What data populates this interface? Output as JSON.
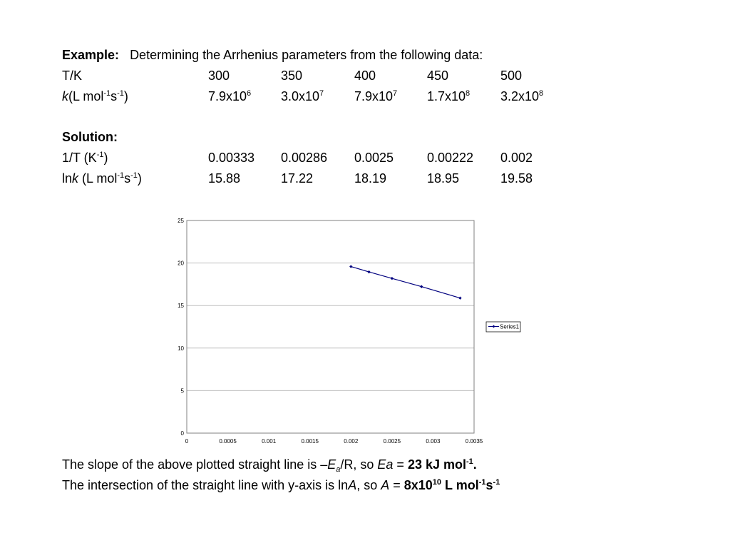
{
  "example": {
    "label": "Example:",
    "text": "Determining the Arrhenius parameters from the following data:"
  },
  "data_table": {
    "temp_label": "T/K",
    "temps": [
      "300",
      "350",
      "400",
      "450",
      "500"
    ],
    "k_label_k": "k",
    "k_label_open": "(L mol",
    "k_label_exp1": "-1",
    "k_label_s": "s",
    "k_label_exp2": "-1",
    "k_label_close": ")",
    "k_values": [
      {
        "mant": "7.9x10",
        "exp": "6"
      },
      {
        "mant": "3.0x10",
        "exp": "7"
      },
      {
        "mant": "7.9x10",
        "exp": "7"
      },
      {
        "mant": "1.7x10",
        "exp": "8"
      },
      {
        "mant": "3.2x10",
        "exp": "8"
      }
    ]
  },
  "solution": {
    "label": "Solution:",
    "inv_t_label_a": "1/T (K",
    "inv_t_label_exp": "-1",
    "inv_t_label_b": ")",
    "inv_t": [
      "0.00333",
      "0.00286",
      "0.0025",
      "0.00222",
      "0.002"
    ],
    "lnk_label_ln": "ln",
    "lnk_label_k": "k",
    "lnk_label_a": " (L mol",
    "lnk_label_exp1": "-1",
    "lnk_label_s": "s",
    "lnk_label_exp2": "-1",
    "lnk_label_close": ")",
    "lnk": [
      "15.88",
      "17.22",
      "18.19",
      "18.95",
      "19.58"
    ]
  },
  "chart_data": {
    "type": "scatter",
    "title": "",
    "xlabel": "",
    "ylabel": "",
    "xlim": [
      0,
      0.0035
    ],
    "ylim": [
      0,
      25
    ],
    "xticks": [
      "0",
      "0.0005",
      "0.001",
      "0.0015",
      "0.002",
      "0.0025",
      "0.003",
      "0.0035"
    ],
    "yticks": [
      "0",
      "5",
      "10",
      "15",
      "20",
      "25"
    ],
    "grid": "horizontal",
    "legend": "right",
    "line_color": "#00007f",
    "series": [
      {
        "name": "Series1",
        "x": [
          0.00333,
          0.00286,
          0.0025,
          0.00222,
          0.002
        ],
        "y": [
          15.88,
          17.22,
          18.19,
          18.95,
          19.58
        ]
      }
    ]
  },
  "conclusion": {
    "slope_a": "The slope of the above plotted straight line is –",
    "slope_E": "E",
    "slope_sub": "a",
    "slope_b": "/R, so ",
    "slope_Ea": "Ea",
    "slope_eq": " = ",
    "slope_val": "23 kJ mol",
    "slope_exp": "-1",
    "slope_end": ".",
    "int_a": "The intersection of the straight line with y-axis is ln",
    "int_A": "A",
    "int_b": ", so ",
    "int_A2": "A",
    "int_eq": " = ",
    "int_val": "8x10",
    "int_exp1": "10",
    "int_unit": " L mol",
    "int_exp2": "-1",
    "int_s": "s",
    "int_exp3": "-1"
  }
}
